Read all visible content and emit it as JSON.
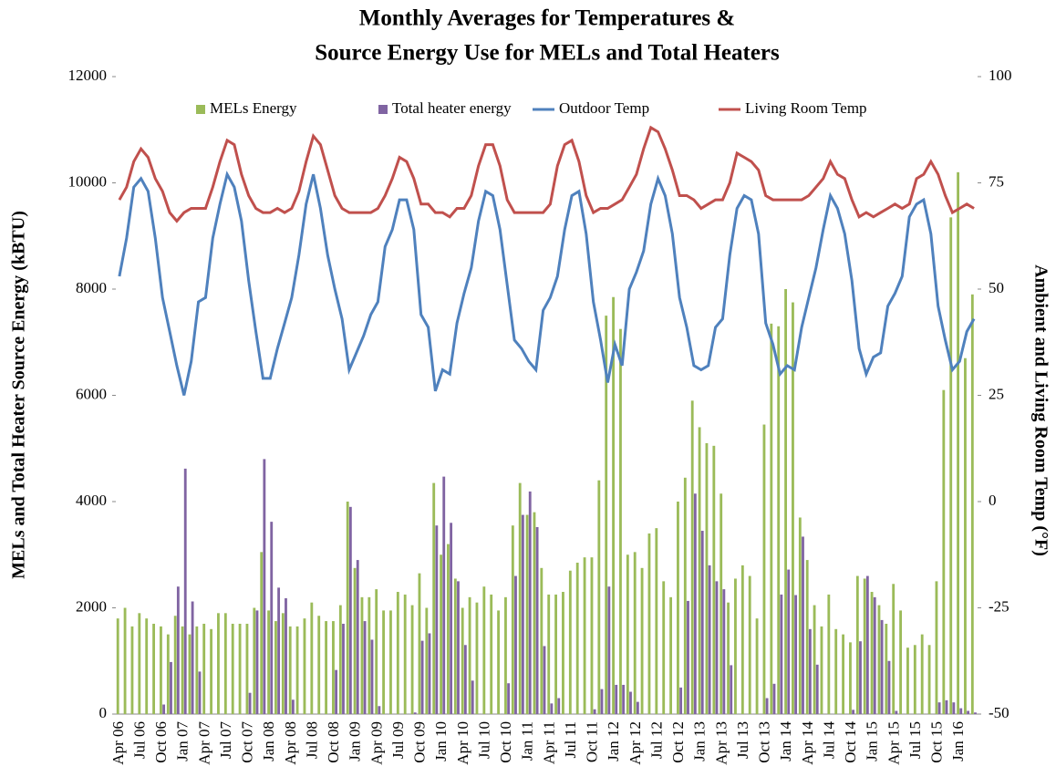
{
  "chart_data": {
    "type": "bar-line",
    "title": [
      "Monthly Averages for Temperatures &",
      "Source Energy Use for MELs and Total Heaters"
    ],
    "y_label": "MELs and Total Heater Source Energy (kBTU)",
    "y2_label": "Ambient and Living Room Temp (°F)",
    "categories": [
      "Apr 06",
      null,
      null,
      "Jul 06",
      null,
      null,
      "Oct 06",
      null,
      null,
      "Jan 07",
      null,
      null,
      "Apr 07",
      null,
      null,
      "Jul 07",
      null,
      null,
      "Oct 07",
      null,
      null,
      "Jan 08",
      null,
      null,
      "Apr 08",
      null,
      null,
      "Jul 08",
      null,
      null,
      "Oct 08",
      null,
      null,
      "Jan 09",
      null,
      null,
      "Apr 09",
      null,
      null,
      "Jul 09",
      null,
      null,
      "Oct 09",
      null,
      null,
      "Jan 10",
      null,
      null,
      "Apr 10",
      null,
      null,
      "Jul 10",
      null,
      null,
      "Oct 10",
      null,
      null,
      "Jan 11",
      null,
      null,
      "Apr 11",
      null,
      null,
      "Jul 11",
      null,
      null,
      "Oct 11",
      null,
      null,
      "Jan 12",
      null,
      null,
      "Apr 12",
      null,
      null,
      "Jul 12",
      null,
      null,
      "Oct 12",
      null,
      null,
      "Jan 13",
      null,
      null,
      "Apr 13",
      null,
      null,
      "Jul 13",
      null,
      null,
      "Oct 13",
      null,
      null,
      "Jan 14",
      null,
      null,
      "Apr 14",
      null,
      null,
      "Jul 14",
      null,
      null,
      "Oct 14",
      null,
      null,
      "Jan 15",
      null,
      null,
      "Apr 15",
      null,
      null,
      "Jul 15",
      null,
      null,
      "Oct 15",
      null,
      null,
      "Jan 16",
      null,
      null
    ],
    "series": [
      {
        "name": "MELs Energy",
        "type": "bar",
        "color": "#9bbb59",
        "axis": "y",
        "values": [
          1800,
          2000,
          1650,
          1900,
          1800,
          1700,
          1650,
          1500,
          1850,
          1650,
          1500,
          1650,
          1700,
          1600,
          1900,
          1900,
          1700,
          1700,
          1700,
          2000,
          3050,
          1950,
          1750,
          1900,
          1650,
          1650,
          1800,
          2100,
          1850,
          1750,
          1750,
          2050,
          4000,
          2750,
          2200,
          2200,
          2350,
          1950,
          1950,
          2300,
          2250,
          2050,
          2650,
          2000,
          4350,
          3000,
          3200,
          2550,
          2000,
          2200,
          2100,
          2400,
          2250,
          1950,
          2200,
          3550,
          4350,
          3750,
          3800,
          2750,
          2250,
          2250,
          2300,
          2700,
          2850,
          2950,
          2950,
          4400,
          7500,
          7850,
          7250,
          3000,
          3050,
          2750,
          3400,
          3500,
          2500,
          2200,
          4000,
          4450,
          5900,
          5400,
          5100,
          5050,
          4150,
          2100,
          2550,
          2800,
          2600,
          1800,
          5450,
          7350,
          7300,
          8000,
          7750,
          3700,
          2900,
          2050,
          1650,
          2250,
          1600,
          1500,
          1350,
          2600,
          2550,
          2300,
          2050,
          1700,
          2450,
          1950,
          1250,
          1300,
          1500,
          1300,
          2500,
          6100,
          9350,
          10200,
          6700,
          7900
        ]
      },
      {
        "name": "Total heater energy",
        "type": "bar",
        "color": "#8064a2",
        "axis": "y",
        "values": [
          0,
          0,
          0,
          0,
          0,
          0,
          180,
          980,
          2400,
          4620,
          2120,
          800,
          0,
          0,
          0,
          0,
          0,
          0,
          400,
          1950,
          4800,
          3620,
          2380,
          2180,
          270,
          0,
          0,
          0,
          0,
          0,
          830,
          1700,
          3900,
          2900,
          1750,
          1400,
          150,
          0,
          0,
          0,
          0,
          30,
          1380,
          1520,
          3550,
          4470,
          3600,
          2500,
          1300,
          630,
          0,
          0,
          0,
          0,
          580,
          2600,
          3750,
          4190,
          3520,
          1280,
          200,
          300,
          0,
          0,
          0,
          0,
          90,
          470,
          2400,
          550,
          550,
          420,
          230,
          0,
          0,
          0,
          0,
          0,
          500,
          2130,
          4150,
          3450,
          2800,
          2500,
          2350,
          920,
          0,
          0,
          0,
          0,
          300,
          570,
          2250,
          2720,
          2240,
          3340,
          1600,
          930,
          0,
          0,
          0,
          0,
          80,
          1370,
          2600,
          2200,
          1770,
          1000,
          60,
          0,
          0,
          0,
          0,
          0,
          220,
          260,
          220,
          110,
          60,
          30
        ]
      },
      {
        "name": "Outdoor Temp",
        "type": "line",
        "color": "#4f81bd",
        "axis": "y2",
        "values": [
          53,
          62,
          74,
          76,
          73,
          62,
          48,
          40,
          32,
          25,
          33,
          47,
          48,
          62,
          70,
          77,
          74,
          66,
          52,
          40,
          29,
          29,
          36,
          42,
          48,
          58,
          70,
          77,
          69,
          58,
          50,
          43,
          31,
          35,
          39,
          44,
          47,
          60,
          64,
          71,
          71,
          64,
          44,
          41,
          26,
          31,
          30,
          42,
          49,
          55,
          66,
          73,
          72,
          64,
          51,
          38,
          36,
          33,
          31,
          45,
          48,
          53,
          64,
          72,
          73,
          63,
          47,
          38,
          28,
          37,
          32,
          50,
          54,
          59,
          70,
          76,
          72,
          63,
          48,
          41,
          32,
          31,
          32,
          41,
          43,
          58,
          69,
          72,
          71,
          63,
          42,
          37,
          30,
          32,
          31,
          41,
          48,
          55,
          64,
          72,
          69,
          63,
          52,
          36,
          30,
          34,
          35,
          46,
          49,
          53,
          67,
          70,
          71,
          63,
          46,
          38,
          31,
          33,
          40,
          43
        ]
      },
      {
        "name": "Living Room Temp",
        "type": "line",
        "color": "#c0504d",
        "axis": "y2",
        "values": [
          71,
          74,
          80,
          83,
          81,
          76,
          73,
          68,
          66,
          68,
          69,
          69,
          69,
          74,
          80,
          85,
          84,
          77,
          72,
          69,
          68,
          68,
          69,
          68,
          69,
          73,
          80,
          86,
          84,
          78,
          72,
          69,
          68,
          68,
          68,
          68,
          69,
          72,
          76,
          81,
          80,
          76,
          70,
          70,
          68,
          68,
          67,
          69,
          69,
          72,
          79,
          84,
          84,
          79,
          71,
          68,
          68,
          68,
          68,
          68,
          70,
          79,
          84,
          85,
          80,
          72,
          68,
          69,
          69,
          70,
          71,
          74,
          77,
          83,
          88,
          87,
          83,
          78,
          72,
          72,
          71,
          69,
          70,
          71,
          71,
          75,
          82,
          81,
          80,
          78,
          72,
          71,
          71,
          71,
          71,
          71,
          72,
          74,
          76,
          80,
          77,
          76,
          71,
          67,
          68,
          67,
          68,
          69,
          70,
          69,
          70,
          76,
          77,
          80,
          77,
          72,
          68,
          69,
          70,
          69
        ]
      }
    ],
    "ylim": [
      0,
      12000
    ],
    "yticks": [
      0,
      2000,
      4000,
      6000,
      8000,
      10000,
      12000
    ],
    "y2lim": [
      -50,
      100
    ],
    "y2ticks": [
      -50,
      -25,
      0,
      25,
      50,
      75,
      100
    ],
    "grid": false,
    "legend": "top"
  }
}
